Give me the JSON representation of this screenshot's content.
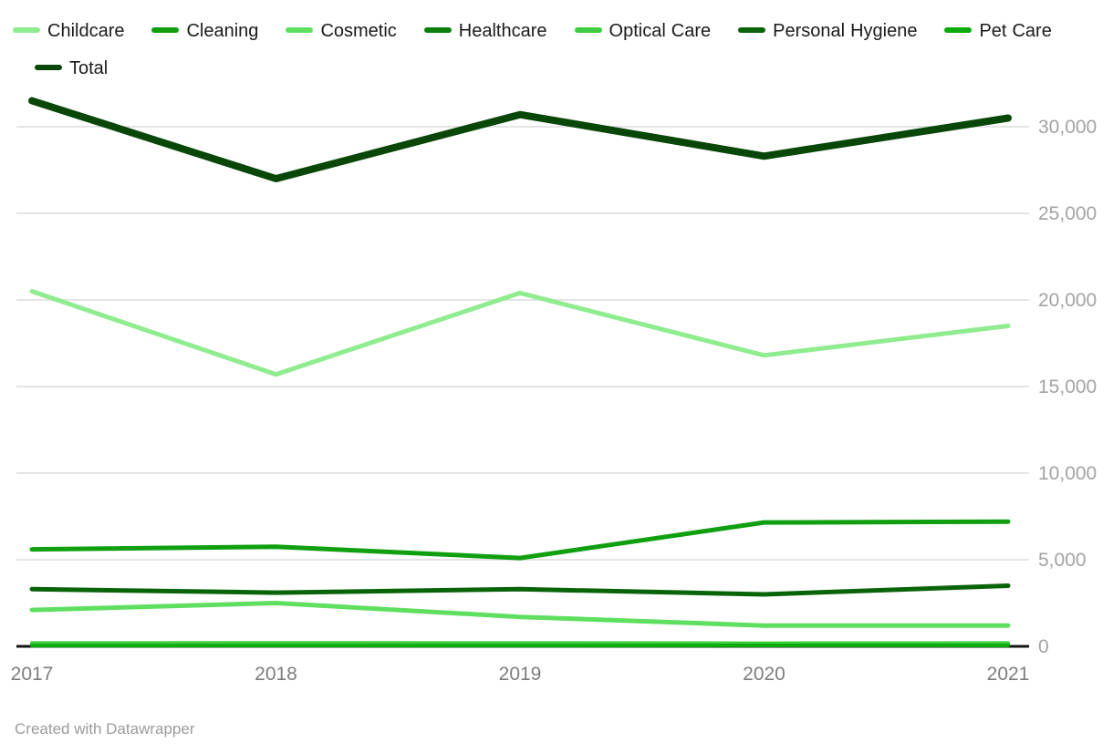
{
  "legend": {
    "items": [
      {
        "label": "Childcare",
        "color": "#8fec8f"
      },
      {
        "label": "Cleaning",
        "color": "#0f9f0f"
      },
      {
        "label": "Cosmetic",
        "color": "#5fdf5f"
      },
      {
        "label": "Healthcare",
        "color": "#0c7e0c"
      },
      {
        "label": "Optical Care",
        "color": "#3ecd3e"
      },
      {
        "label": "Personal Hygiene",
        "color": "#096309"
      },
      {
        "label": "Pet Care",
        "color": "#0bab0b"
      },
      {
        "label": "Total",
        "color": "#084708"
      }
    ]
  },
  "footer": {
    "credit": "Created with Datawrapper"
  },
  "chart_data": {
    "type": "line",
    "x": [
      "2017",
      "2018",
      "2019",
      "2020",
      "2021"
    ],
    "series": [
      {
        "name": "Childcare",
        "color": "#8fec8f",
        "values": [
          20500,
          15700,
          20400,
          16800,
          18500
        ]
      },
      {
        "name": "Cleaning",
        "color": "#0f9f0f",
        "values": [
          5600,
          5750,
          5100,
          7150,
          7200
        ]
      },
      {
        "name": "Cosmetic",
        "color": "#5fdf5f",
        "values": [
          2100,
          2500,
          1700,
          1200,
          1200
        ]
      },
      {
        "name": "Healthcare",
        "color": "#0c7e0c",
        "values": [
          120,
          130,
          120,
          120,
          130
        ]
      },
      {
        "name": "Optical Care",
        "color": "#3ecd3e",
        "values": [
          190,
          200,
          190,
          180,
          190
        ]
      },
      {
        "name": "Personal Hygiene",
        "color": "#096309",
        "values": [
          3300,
          3100,
          3300,
          3000,
          3500
        ]
      },
      {
        "name": "Pet Care",
        "color": "#0bab0b",
        "values": [
          40,
          40,
          40,
          50,
          50
        ]
      },
      {
        "name": "Total",
        "color": "#084708",
        "values": [
          31500,
          27000,
          30700,
          28300,
          30500
        ]
      }
    ],
    "yticks": [
      0,
      5000,
      10000,
      15000,
      20000,
      25000,
      30000
    ],
    "ylim": [
      0,
      32500
    ],
    "grid": true,
    "legend_position": "top",
    "title": "",
    "xlabel": "",
    "ylabel": ""
  }
}
